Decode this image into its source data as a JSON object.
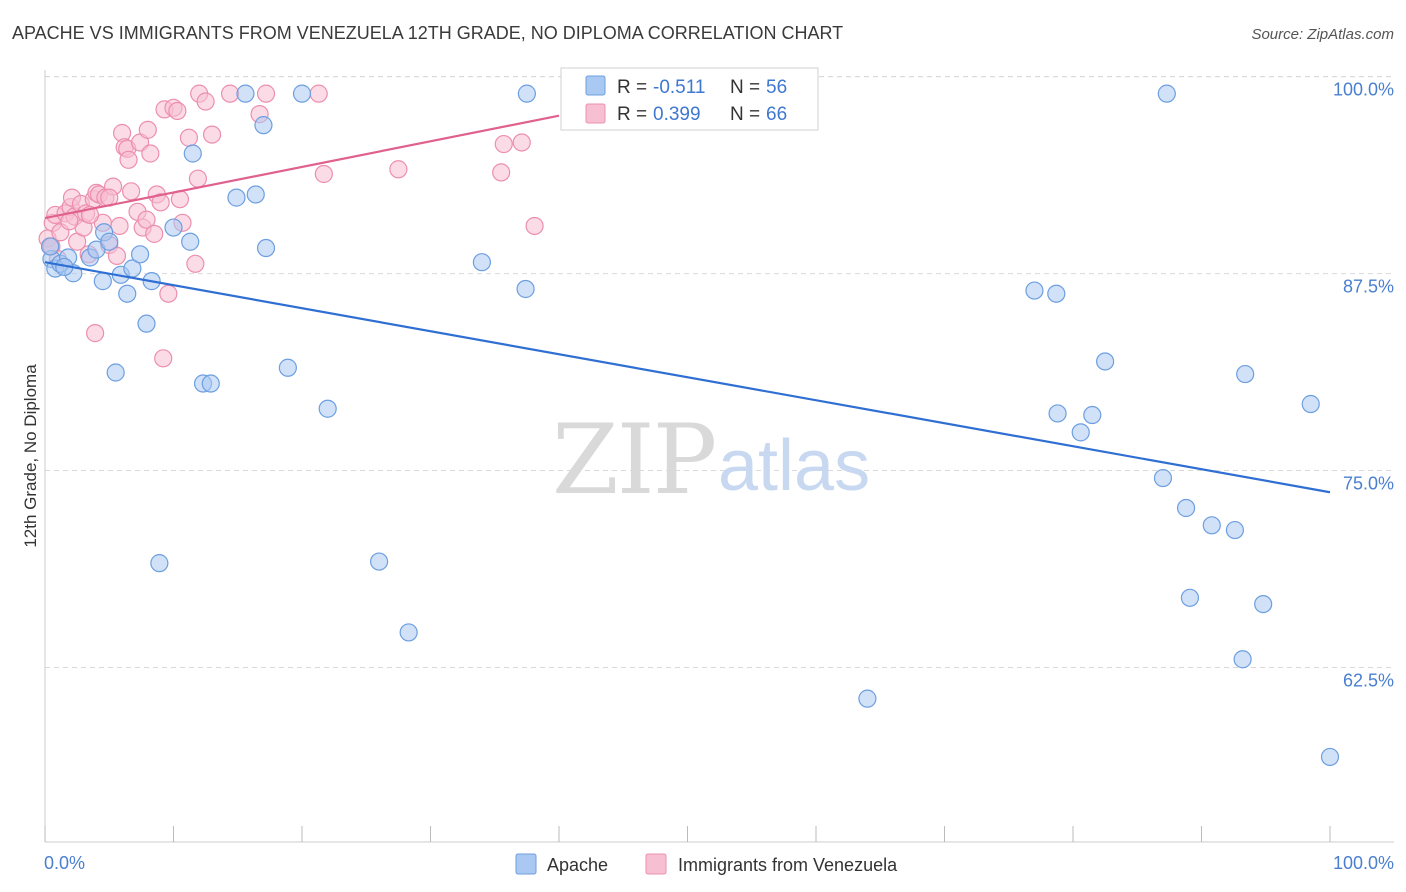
{
  "title": "APACHE VS IMMIGRANTS FROM VENEZUELA 12TH GRADE, NO DIPLOMA CORRELATION CHART",
  "source": "Source: ZipAtlas.com",
  "watermark": {
    "zip": "ZIP",
    "atlas": "atlas"
  },
  "colors": {
    "apache_fill": "#a9c9f2",
    "apache_stroke": "#6d9fe0",
    "apache_line": "#2f6fd3",
    "venezuela_fill": "#f7c0d2",
    "venezuela_stroke": "#ec8fae",
    "venezuela_line": "#e0608e",
    "grid": "#d9d9d9",
    "tick_text": "#4a7fd0"
  },
  "legend": {
    "rows": [
      {
        "r_label": "R =",
        "r_value": "-0.511",
        "n_label": "N =",
        "n_value": "56"
      },
      {
        "r_label": "R =",
        "r_value": "0.399",
        "n_label": "N =",
        "n_value": "66"
      }
    ]
  },
  "bottom_legend": {
    "apache": "Apache",
    "venezuela": "Immigrants from Venezuela"
  },
  "chart_data": {
    "type": "scatter",
    "ylabel": "12th Grade, No Diploma",
    "xlim": [
      0,
      100
    ],
    "ylim": [
      52.5,
      101.5
    ],
    "x_tick_labels": {
      "left": "0.0%",
      "right": "100.0%"
    },
    "y_ticks": [
      {
        "value": 100,
        "label": "100.0%"
      },
      {
        "value": 87.5,
        "label": "87.5%"
      },
      {
        "value": 75,
        "label": "75.0%"
      },
      {
        "value": 62.5,
        "label": "62.5%"
      }
    ],
    "grid": true,
    "legend_position": "top-center",
    "series": [
      {
        "name": "Apache",
        "trend": {
          "x": [
            0,
            100
          ],
          "y": [
            89.3,
            74.7
          ]
        },
        "points": [
          [
            0.5,
            89.5
          ],
          [
            0.8,
            88.9
          ],
          [
            1.2,
            89.2
          ],
          [
            1.8,
            89.6
          ],
          [
            2.2,
            88.6
          ],
          [
            3.5,
            89.6
          ],
          [
            4,
            90.1
          ],
          [
            4.5,
            88.1
          ],
          [
            4.6,
            91.2
          ],
          [
            5,
            90.6
          ],
          [
            5.5,
            82.3
          ],
          [
            5.9,
            88.5
          ],
          [
            6.4,
            87.3
          ],
          [
            6.8,
            88.9
          ],
          [
            7.4,
            89.8
          ],
          [
            7.9,
            85.4
          ],
          [
            8.3,
            88.1
          ],
          [
            8.9,
            70.2
          ],
          [
            10,
            91.5
          ],
          [
            11.3,
            90.6
          ],
          [
            11.5,
            96.2
          ],
          [
            12.3,
            81.6
          ],
          [
            12.9,
            81.6
          ],
          [
            14.9,
            93.4
          ],
          [
            15.6,
            100
          ],
          [
            16.4,
            93.6
          ],
          [
            17,
            98
          ],
          [
            17.2,
            90.2
          ],
          [
            18.9,
            82.6
          ],
          [
            20,
            100
          ],
          [
            22,
            80
          ],
          [
            26,
            70.3
          ],
          [
            28.3,
            65.8
          ],
          [
            34,
            89.3
          ],
          [
            37.4,
            87.6
          ],
          [
            37.5,
            100
          ],
          [
            64,
            61.6
          ],
          [
            77,
            87.5
          ],
          [
            78.7,
            87.3
          ],
          [
            78.8,
            79.7
          ],
          [
            80.6,
            78.5
          ],
          [
            81.5,
            79.6
          ],
          [
            82.5,
            83
          ],
          [
            87,
            75.6
          ],
          [
            87.3,
            100
          ],
          [
            88.8,
            73.7
          ],
          [
            89.1,
            68
          ],
          [
            90.8,
            72.6
          ],
          [
            92.6,
            72.3
          ],
          [
            93.2,
            64.1
          ],
          [
            93.4,
            82.2
          ],
          [
            94.8,
            67.6
          ],
          [
            98.5,
            80.3
          ],
          [
            100,
            57.9
          ],
          [
            0.4,
            90.3
          ],
          [
            1.5,
            89.0
          ]
        ]
      },
      {
        "name": "Immigrants from Venezuela",
        "trend": {
          "x": [
            0,
            40
          ],
          "y": [
            92.1,
            98.6
          ]
        },
        "points": [
          [
            0.2,
            90.8
          ],
          [
            0.4,
            90.3
          ],
          [
            0.5,
            90.3
          ],
          [
            0.6,
            91.8
          ],
          [
            0.8,
            92.3
          ],
          [
            1,
            89.5
          ],
          [
            1.2,
            91.2
          ],
          [
            1.6,
            92.4
          ],
          [
            2,
            92.8
          ],
          [
            2.1,
            93.4
          ],
          [
            2.3,
            92.2
          ],
          [
            2.5,
            90.6
          ],
          [
            2.8,
            93
          ],
          [
            3,
            91.5
          ],
          [
            3.2,
            92.4
          ],
          [
            3.4,
            89.8
          ],
          [
            3.8,
            93.3
          ],
          [
            4,
            93.7
          ],
          [
            4.2,
            93.6
          ],
          [
            4.5,
            91.8
          ],
          [
            4.7,
            93.4
          ],
          [
            5,
            90.4
          ],
          [
            5.3,
            94.1
          ],
          [
            5.6,
            89.7
          ],
          [
            5.8,
            91.6
          ],
          [
            6,
            97.5
          ],
          [
            6.2,
            96.6
          ],
          [
            6.4,
            96.5
          ],
          [
            6.5,
            95.8
          ],
          [
            6.7,
            93.8
          ],
          [
            7.2,
            92.5
          ],
          [
            7.4,
            96.9
          ],
          [
            7.6,
            91.5
          ],
          [
            7.9,
            92
          ],
          [
            8,
            97.7
          ],
          [
            8.5,
            91.1
          ],
          [
            8.7,
            93.6
          ],
          [
            9,
            93.1
          ],
          [
            9.3,
            99
          ],
          [
            9.6,
            87.3
          ],
          [
            10,
            99.1
          ],
          [
            10.3,
            98.9
          ],
          [
            10.5,
            93.3
          ],
          [
            10.7,
            91.8
          ],
          [
            11.2,
            97.2
          ],
          [
            11.7,
            89.2
          ],
          [
            11.9,
            94.6
          ],
          [
            12,
            100
          ],
          [
            12.5,
            99.5
          ],
          [
            13,
            97.4
          ],
          [
            14.4,
            100
          ],
          [
            16.7,
            98.7
          ],
          [
            17.2,
            100
          ],
          [
            21.3,
            100
          ],
          [
            21.7,
            94.9
          ],
          [
            27.5,
            95.2
          ],
          [
            35.5,
            95
          ],
          [
            35.7,
            96.8
          ],
          [
            37.1,
            96.9
          ],
          [
            38.1,
            91.6
          ],
          [
            3.9,
            84.8
          ],
          [
            9.2,
            83.2
          ],
          [
            3.5,
            92.3
          ],
          [
            5.0,
            93.4
          ],
          [
            1.9,
            91.9
          ],
          [
            8.2,
            96.2
          ]
        ]
      }
    ]
  }
}
